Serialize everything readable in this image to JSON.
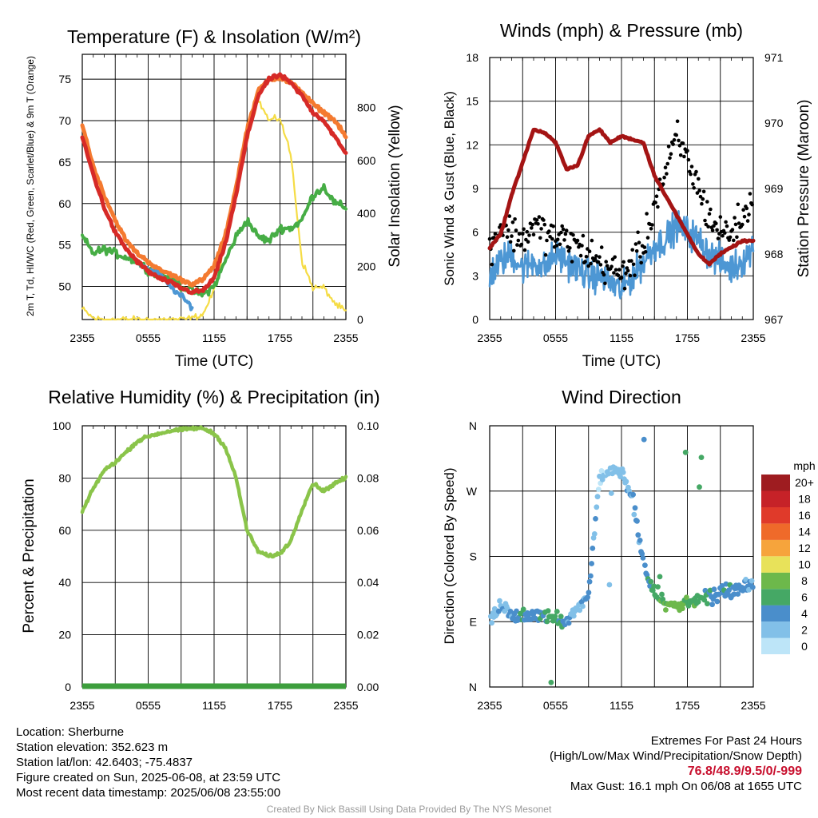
{
  "footer": {
    "location": "Location: Sherburne",
    "elevation": "Station elevation: 352.623 m",
    "latlon": "Station lat/lon: 42.6403; -75.4837",
    "created": "Figure created on Sun, 2025-06-08, at 23:59 UTC",
    "recent": "Most recent data timestamp: 2025/06/08 23:55:00",
    "extremes_title": "Extremes For Past 24 Hours",
    "extremes_fields": "(High/Low/Max Wind/Precipitation/Snow Depth)",
    "extremes_values": "76.8/48.9/9.5/0/-999",
    "max_gust": "Max Gust: 16.1 mph On 06/08 at 1655 UTC",
    "credit": "Created By Nick Bassill Using Data Provided By The NYS Mesonet"
  },
  "colors": {
    "temp_2m": "#d62a27",
    "temp_9m": "#f47a30",
    "dewpoint": "#46ad45",
    "hi_wc": "#4d97d4",
    "insolation": "#f5dc45",
    "wind": "#4d97d4",
    "gust": "#000000",
    "pressure": "#a41414",
    "rh": "#8ac44a",
    "precip": "#3d9e3d"
  },
  "chart_data": [
    {
      "type": "line",
      "title": "Temperature (F) & Insolation (W/m²)",
      "xlabel": "Time (UTC)",
      "ylabel": "2m T, Td, HI/WC (Red, Green, Scarlet/Blue) & 9m T (Orange)",
      "y2label": "Solar Insolation (Yellow)",
      "x_ticks": [
        "2355",
        "0555",
        "1155",
        "1755",
        "2355"
      ],
      "ylim": [
        46,
        78
      ],
      "y_ticks": [
        50,
        55,
        60,
        65,
        70,
        75
      ],
      "y2lim": [
        0,
        1000
      ],
      "y2_ticks": [
        0,
        200,
        400,
        600,
        800
      ],
      "hours": [
        0,
        1,
        2,
        3,
        4,
        5,
        6,
        7,
        8,
        9,
        10,
        11,
        12,
        13,
        14,
        15,
        16,
        17,
        18,
        19,
        20,
        21,
        22,
        23,
        24
      ],
      "series": [
        {
          "name": "2m T",
          "axis": "left",
          "values": [
            68,
            63.5,
            59.5,
            56.5,
            54.5,
            53,
            51.8,
            51,
            50.5,
            49.8,
            49.3,
            49.5,
            51,
            55,
            61,
            68,
            73,
            75,
            75.5,
            74.5,
            73,
            71,
            70,
            68,
            66
          ]
        },
        {
          "name": "9m T",
          "axis": "left",
          "values": [
            69.5,
            64.5,
            61,
            58,
            55.5,
            54,
            53,
            52,
            51.5,
            50.8,
            50.3,
            50.8,
            52.5,
            56,
            62,
            69,
            73.5,
            75,
            75.2,
            74.5,
            73.5,
            72,
            71,
            70,
            68
          ]
        },
        {
          "name": "Td",
          "axis": "left",
          "values": [
            56,
            54,
            54.5,
            54,
            53.5,
            53,
            52,
            51.5,
            51,
            50,
            49.5,
            49,
            50,
            53,
            56,
            58,
            56,
            55.5,
            57,
            57,
            58,
            61,
            62,
            60,
            59.5
          ]
        },
        {
          "name": "HI/WC",
          "axis": "left",
          "values": [
            null,
            null,
            null,
            null,
            null,
            53,
            52,
            51.5,
            50,
            48.8,
            47.5,
            null,
            null,
            null,
            null,
            null,
            null,
            null,
            null,
            null,
            null,
            null,
            null,
            null,
            null
          ]
        },
        {
          "name": "Solar Insolation",
          "axis": "right",
          "values": [
            40,
            5,
            0,
            0,
            0,
            0,
            0,
            0,
            0,
            0,
            5,
            20,
            110,
            280,
            480,
            680,
            830,
            750,
            760,
            620,
            220,
            120,
            120,
            60,
            30
          ]
        }
      ]
    },
    {
      "type": "line",
      "title": "Winds (mph) & Pressure (mb)",
      "xlabel": "Time (UTC)",
      "ylabel": "Sonic Wind & Gust (Blue, Black)",
      "y2label": "Station Pressure (Maroon)",
      "x_ticks": [
        "2355",
        "0555",
        "1155",
        "1755",
        "2355"
      ],
      "ylim": [
        0,
        18
      ],
      "y_ticks": [
        0,
        3,
        6,
        9,
        12,
        15,
        18
      ],
      "y2lim": [
        967,
        971
      ],
      "y2_ticks": [
        967,
        968,
        969,
        970,
        971
      ],
      "hours": [
        0,
        1,
        2,
        3,
        4,
        5,
        6,
        7,
        8,
        9,
        10,
        11,
        12,
        13,
        14,
        15,
        16,
        17,
        18,
        19,
        20,
        21,
        22,
        23,
        24
      ],
      "series": [
        {
          "name": "Sonic Wind",
          "axis": "left",
          "values": [
            3,
            4,
            4.5,
            3.5,
            4,
            3.5,
            4.5,
            4,
            3.5,
            3,
            3,
            2.5,
            2,
            3,
            4,
            5,
            5.5,
            6.5,
            6,
            5.5,
            4.5,
            4,
            3.5,
            4,
            5
          ]
        },
        {
          "name": "Gust",
          "axis": "left",
          "values": [
            5,
            6.5,
            6,
            5.5,
            6.5,
            6,
            5.5,
            5.5,
            5,
            4.5,
            4,
            3.5,
            3,
            4,
            5,
            8,
            10,
            12.5,
            11,
            9,
            7,
            6,
            6,
            7,
            8
          ]
        },
        {
          "name": "Station Pressure",
          "axis": "right",
          "values": [
            968.1,
            968.3,
            968.9,
            969.4,
            969.9,
            969.85,
            969.7,
            969.3,
            969.35,
            969.8,
            969.9,
            969.7,
            969.8,
            969.75,
            969.7,
            969.2,
            968.9,
            968.6,
            968.3,
            968.0,
            967.85,
            968.0,
            968.1,
            968.2,
            968.2
          ]
        }
      ]
    },
    {
      "type": "line",
      "title": "Relative Humidity (%) & Precipitation (in)",
      "ylabel": "Percent & Precipitation",
      "x_ticks": [
        "2355",
        "0555",
        "1155",
        "1755",
        "2355"
      ],
      "ylim": [
        0,
        100
      ],
      "y_ticks": [
        0,
        20,
        40,
        60,
        80,
        100
      ],
      "y2lim": [
        0,
        0.1
      ],
      "y2_ticks": [
        "0.00",
        "0.02",
        "0.04",
        "0.06",
        "0.08",
        "0.10"
      ],
      "hours": [
        0,
        1,
        2,
        3,
        4,
        5,
        6,
        7,
        8,
        9,
        10,
        11,
        12,
        13,
        14,
        15,
        16,
        17,
        18,
        19,
        20,
        21,
        22,
        23,
        24
      ],
      "series": [
        {
          "name": "RH",
          "axis": "left",
          "values": [
            67,
            76,
            83,
            86,
            90,
            94,
            96,
            97,
            98,
            98.5,
            99,
            99,
            97,
            92,
            80,
            60,
            52,
            50,
            51,
            56,
            68,
            78,
            75,
            78,
            80
          ]
        },
        {
          "name": "Precipitation",
          "axis": "right",
          "values": [
            0,
            0,
            0,
            0,
            0,
            0,
            0,
            0,
            0,
            0,
            0,
            0,
            0,
            0,
            0,
            0,
            0,
            0,
            0,
            0,
            0,
            0,
            0,
            0,
            0
          ]
        }
      ]
    },
    {
      "type": "scatter",
      "title": "Wind Direction",
      "ylabel": "Direction (Colored By Speed)",
      "x_ticks": [
        "2355",
        "0555",
        "1155",
        "1755",
        "2355"
      ],
      "y_ticks": [
        "N",
        "E",
        "S",
        "W",
        "N"
      ],
      "ylim": [
        0,
        360
      ],
      "colorbar_unit": "mph",
      "colorbar_labels": [
        "0",
        "2",
        "4",
        "6",
        "8",
        "10",
        "12",
        "14",
        "16",
        "18",
        "20+"
      ],
      "colorbar_colors": [
        "#bde5f8",
        "#82c0e8",
        "#4a8ecb",
        "#45a865",
        "#6db84b",
        "#e8e25a",
        "#f6a43c",
        "#ef6a2a",
        "#e03a2a",
        "#c62228",
        "#9e1c20"
      ],
      "hours": [
        0,
        1,
        2,
        3,
        4,
        5,
        6,
        7,
        8,
        9,
        10,
        11,
        12,
        13,
        14,
        15,
        16,
        17,
        18,
        19,
        20,
        21,
        22,
        23,
        24
      ],
      "direction_deg": [
        90,
        115,
        100,
        95,
        98,
        100,
        95,
        90,
        110,
        125,
        290,
        300,
        295,
        260,
        170,
        130,
        115,
        110,
        115,
        120,
        125,
        130,
        135,
        140,
        140
      ],
      "speed_mph": [
        2,
        3,
        4,
        5,
        4,
        5,
        6,
        3,
        2,
        4,
        1,
        2,
        2,
        3,
        4,
        6,
        7,
        8,
        7,
        6,
        5,
        4,
        4,
        4,
        3
      ]
    }
  ]
}
